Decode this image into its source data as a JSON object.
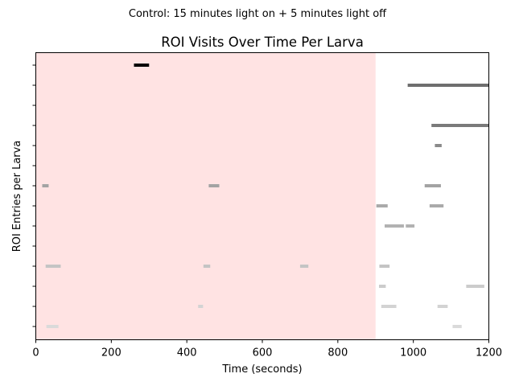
{
  "chart_data": {
    "type": "timeline",
    "suptitle": "Control: 15 minutes light on + 5 minutes light off",
    "title": "ROI Visits Over Time Per Larva",
    "xlabel": "Time (seconds)",
    "ylabel": "ROI Entries per Larva",
    "xlim": [
      0,
      1200
    ],
    "xticks": [
      0,
      200,
      400,
      600,
      800,
      1000,
      1200
    ],
    "row_count": 14,
    "light_on_period": {
      "start": 0,
      "end": 900,
      "color": "#ffe3e3"
    },
    "rows": [
      {
        "color": "#000000",
        "segments": [
          [
            260,
            300
          ]
        ]
      },
      {
        "color": "#6e6e6e",
        "segments": [
          [
            985,
            1200
          ]
        ]
      },
      {
        "color": "#777777",
        "segments": []
      },
      {
        "color": "#7a7a7a",
        "segments": [
          [
            1048,
            1200
          ]
        ]
      },
      {
        "color": "#8a8a8a",
        "segments": [
          [
            1057,
            1075
          ]
        ]
      },
      {
        "color": "#9a9a9a",
        "segments": []
      },
      {
        "color": "#a3a3a3",
        "segments": [
          [
            17,
            34
          ],
          [
            458,
            486
          ],
          [
            1030,
            1073
          ]
        ]
      },
      {
        "color": "#aaaaaa",
        "segments": [
          [
            902,
            932
          ],
          [
            1043,
            1080
          ]
        ]
      },
      {
        "color": "#b2b2b2",
        "segments": [
          [
            924,
            975
          ],
          [
            980,
            1003
          ]
        ]
      },
      {
        "color": "#bdbdbd",
        "segments": []
      },
      {
        "color": "#c4c4c4",
        "segments": [
          [
            26,
            66
          ],
          [
            444,
            462
          ],
          [
            700,
            722
          ],
          [
            910,
            937
          ]
        ]
      },
      {
        "color": "#cccccc",
        "segments": [
          [
            909,
            927
          ],
          [
            1140,
            1188
          ]
        ]
      },
      {
        "color": "#d3d3d3",
        "segments": [
          [
            430,
            443
          ],
          [
            915,
            955
          ],
          [
            1064,
            1091
          ]
        ]
      },
      {
        "color": "#dadada",
        "segments": [
          [
            28,
            60
          ],
          [
            1104,
            1128
          ]
        ]
      }
    ]
  }
}
